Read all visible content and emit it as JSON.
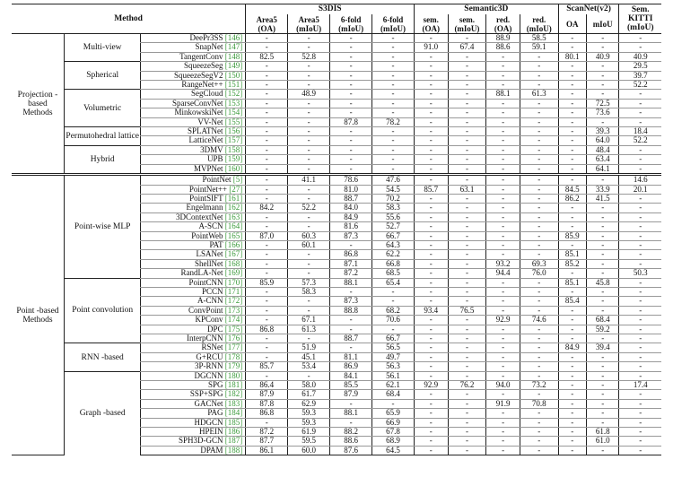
{
  "header": {
    "method": "Method",
    "groups": [
      "S3DIS",
      "Semantic3D",
      "ScanNet(v2)",
      "Sem. KITTI"
    ],
    "columns": [
      [
        "Area5",
        "(OA)"
      ],
      [
        "Area5",
        "(mIoU)"
      ],
      [
        "6-fold",
        "(mIoU)"
      ],
      [
        "6-fold",
        "(mIoU)"
      ],
      [
        "sem.",
        "(OA)"
      ],
      [
        "sem.",
        "(mIoU)"
      ],
      [
        "red.",
        "(OA)"
      ],
      [
        "red.",
        "(mIoU)"
      ],
      [
        "OA",
        ""
      ],
      [
        "mIoU",
        ""
      ],
      [
        "(mIoU)",
        ""
      ]
    ]
  },
  "categories": [
    {
      "label": "Projection -based Methods",
      "groups": [
        {
          "label": "Multi-view",
          "rows": [
            {
              "name": "DeePr3SS",
              "ref": "[146]",
              "vals": [
                "-",
                "-",
                "-",
                "-",
                "-",
                "-",
                "88.9",
                "58.5",
                "-",
                "-",
                "-"
              ]
            },
            {
              "name": "SnapNet",
              "ref": "[147]",
              "vals": [
                "-",
                "-",
                "-",
                "-",
                "91.0",
                "67.4",
                "88.6",
                "59.1",
                "-",
                "-",
                "-"
              ]
            },
            {
              "name": "TangentConv",
              "ref": "[148]",
              "vals": [
                "82.5",
                "52.8",
                "-",
                "-",
                "-",
                "-",
                "-",
                "-",
                "80.1",
                "40.9",
                "40.9"
              ]
            }
          ]
        },
        {
          "label": "Spherical",
          "rows": [
            {
              "name": "SqueezeSeg",
              "ref": "[149]",
              "vals": [
                "-",
                "-",
                "-",
                "-",
                "-",
                "-",
                "-",
                "-",
                "-",
                "-",
                "29.5"
              ]
            },
            {
              "name": "SqueezeSegV2",
              "ref": "[150]",
              "vals": [
                "-",
                "-",
                "-",
                "-",
                "-",
                "-",
                "-",
                "-",
                "-",
                "-",
                "39.7"
              ]
            },
            {
              "name": "RangeNet++",
              "ref": "[151]",
              "vals": [
                "-",
                "-",
                "-",
                "-",
                "-",
                "-",
                "-",
                "-",
                "-",
                "-",
                "52.2"
              ]
            }
          ]
        },
        {
          "label": "Volumetric",
          "rows": [
            {
              "name": "SegCloud",
              "ref": "[152]",
              "vals": [
                "-",
                "48.9",
                "-",
                "-",
                "-",
                "-",
                "88.1",
                "61.3",
                "-",
                "-",
                "-"
              ]
            },
            {
              "name": "SparseConvNet",
              "ref": "[153]",
              "vals": [
                "-",
                "-",
                "-",
                "-",
                "-",
                "-",
                "-",
                "-",
                "-",
                "72.5",
                "-"
              ]
            },
            {
              "name": "MinkowskiNet",
              "ref": "[154]",
              "vals": [
                "-",
                "-",
                "-",
                "-",
                "-",
                "-",
                "-",
                "-",
                "-",
                "73.6",
                "-"
              ]
            },
            {
              "name": "VV-Net",
              "ref": "[155]",
              "vals": [
                "-",
                "-",
                "87.8",
                "78.2",
                "-",
                "-",
                "-",
                "-",
                "-",
                "-",
                "-"
              ]
            }
          ]
        },
        {
          "label": "Permutohedral lattice",
          "rows": [
            {
              "name": "SPLATNet",
              "ref": "[156]",
              "vals": [
                "-",
                "-",
                "-",
                "-",
                "-",
                "-",
                "-",
                "-",
                "-",
                "39.3",
                "18.4"
              ]
            },
            {
              "name": "LatticeNet",
              "ref": "[157]",
              "vals": [
                "-",
                "-",
                "-",
                "-",
                "-",
                "-",
                "-",
                "-",
                "-",
                "64.0",
                "52.2"
              ]
            }
          ]
        },
        {
          "label": "Hybrid",
          "rows": [
            {
              "name": "3DMV",
              "ref": "[158]",
              "vals": [
                "-",
                "-",
                "-",
                "-",
                "-",
                "-",
                "-",
                "-",
                "-",
                "48.4",
                "-"
              ]
            },
            {
              "name": "UPB",
              "ref": "[159]",
              "vals": [
                "-",
                "-",
                "-",
                "-",
                "-",
                "-",
                "-",
                "-",
                "-",
                "63.4",
                "-"
              ]
            },
            {
              "name": "MVPNet",
              "ref": "[160]",
              "vals": [
                "-",
                "-",
                "-",
                "-",
                "-",
                "-",
                "-",
                "-",
                "-",
                "64.1",
                "-"
              ]
            }
          ]
        }
      ]
    },
    {
      "label": "Point -based Methods",
      "groups": [
        {
          "label": "Point-wise MLP",
          "rows": [
            {
              "name": "PointNet",
              "ref": "[5]",
              "vals": [
                "-",
                "41.1",
                "78.6",
                "47.6",
                "-",
                "-",
                "-",
                "-",
                "-",
                "-",
                "14.6"
              ]
            },
            {
              "name": "PointNet++",
              "ref": "[27]",
              "vals": [
                "-",
                "-",
                "81.0",
                "54.5",
                "85.7",
                "63.1",
                "-",
                "-",
                "84.5",
                "33.9",
                "20.1"
              ]
            },
            {
              "name": "PointSIFT",
              "ref": "[161]",
              "vals": [
                "-",
                "-",
                "88.7",
                "70.2",
                "-",
                "-",
                "-",
                "-",
                "86.2",
                "41.5",
                "-"
              ]
            },
            {
              "name": "Engelmann",
              "ref": "[162]",
              "vals": [
                "84.2",
                "52.2",
                "84.0",
                "58.3",
                "-",
                "-",
                "-",
                "-",
                "-",
                "-",
                "-"
              ]
            },
            {
              "name": "3DContextNet",
              "ref": "[163]",
              "vals": [
                "-",
                "-",
                "84.9",
                "55.6",
                "-",
                "-",
                "-",
                "-",
                "-",
                "-",
                "-"
              ]
            },
            {
              "name": "A-SCN",
              "ref": "[164]",
              "vals": [
                "-",
                "-",
                "81.6",
                "52.7",
                "-",
                "-",
                "-",
                "-",
                "-",
                "-",
                "-"
              ]
            },
            {
              "name": "PointWeb",
              "ref": "[165]",
              "vals": [
                "87.0",
                "60.3",
                "87.3",
                "66.7",
                "-",
                "-",
                "-",
                "-",
                "85.9",
                "-",
                "-"
              ]
            },
            {
              "name": "PAT",
              "ref": "[166]",
              "vals": [
                "-",
                "60.1",
                "-",
                "64.3",
                "-",
                "-",
                "-",
                "-",
                "-",
                "-",
                "-"
              ]
            },
            {
              "name": "LSANet",
              "ref": "[167]",
              "vals": [
                "-",
                "-",
                "86.8",
                "62.2",
                "-",
                "-",
                "-",
                "-",
                "85.1",
                "-",
                "-"
              ]
            },
            {
              "name": "ShellNet",
              "ref": "[168]",
              "vals": [
                "-",
                "-",
                "87.1",
                "66.8",
                "-",
                "-",
                "93.2",
                "69.3",
                "85.2",
                "-",
                "-"
              ]
            },
            {
              "name": "RandLA-Net",
              "ref": "[169]",
              "vals": [
                "-",
                "-",
                "87.2",
                "68.5",
                "-",
                "-",
                "94.4",
                "76.0",
                "-",
                "-",
                "50.3"
              ]
            }
          ]
        },
        {
          "label": "Point convolution",
          "rows": [
            {
              "name": "PointCNN",
              "ref": "[170]",
              "vals": [
                "85.9",
                "57.3",
                "88.1",
                "65.4",
                "-",
                "-",
                "-",
                "-",
                "85.1",
                "45.8",
                "-"
              ]
            },
            {
              "name": "PCCN",
              "ref": "[171]",
              "vals": [
                "-",
                "58.3",
                "-",
                "-",
                "-",
                "-",
                "-",
                "-",
                "-",
                "-",
                "-"
              ]
            },
            {
              "name": "A-CNN",
              "ref": "[172]",
              "vals": [
                "-",
                "-",
                "87.3",
                "-",
                "-",
                "-",
                "-",
                "-",
                "85.4",
                "-",
                "-"
              ]
            },
            {
              "name": "ConvPoint",
              "ref": "[173]",
              "vals": [
                "-",
                "-",
                "88.8",
                "68.2",
                "93.4",
                "76.5",
                "-",
                "-",
                "-",
                "-",
                "-"
              ]
            },
            {
              "name": "KPConv",
              "ref": "[174]",
              "vals": [
                "-",
                "67.1",
                "-",
                "70.6",
                "-",
                "-",
                "92.9",
                "74.6",
                "-",
                "68.4",
                "-"
              ]
            },
            {
              "name": "DPC",
              "ref": "[175]",
              "vals": [
                "86.8",
                "61.3",
                "-",
                "-",
                "-",
                "-",
                "-",
                "-",
                "-",
                "59.2",
                "-"
              ]
            },
            {
              "name": "InterpCNN",
              "ref": "[176]",
              "vals": [
                "-",
                "-",
                "88.7",
                "66.7",
                "-",
                "-",
                "-",
                "-",
                "-",
                "-",
                "-"
              ]
            }
          ]
        },
        {
          "label": "RNN -based",
          "rows": [
            {
              "name": "RSNet",
              "ref": "[177]",
              "vals": [
                "-",
                "51.9",
                "-",
                "56.5",
                "-",
                "-",
                "-",
                "-",
                "84.9",
                "39.4",
                "-"
              ]
            },
            {
              "name": "G+RCU",
              "ref": "[178]",
              "vals": [
                "-",
                "45.1",
                "81.1",
                "49.7",
                "-",
                "-",
                "-",
                "-",
                "-",
                "-",
                "-"
              ]
            },
            {
              "name": "3P-RNN",
              "ref": "[179]",
              "vals": [
                "85.7",
                "53.4",
                "86.9",
                "56.3",
                "-",
                "-",
                "-",
                "-",
                "-",
                "-",
                "-"
              ]
            }
          ]
        },
        {
          "label": "Graph -based",
          "rows": [
            {
              "name": "DGCNN",
              "ref": "[180]",
              "vals": [
                "-",
                "-",
                "84.1",
                "56.1",
                "-",
                "-",
                "-",
                "-",
                "-",
                "-",
                "-"
              ]
            },
            {
              "name": "SPG",
              "ref": "[181]",
              "vals": [
                "86.4",
                "58.0",
                "85.5",
                "62.1",
                "92.9",
                "76.2",
                "94.0",
                "73.2",
                "-",
                "-",
                "17.4"
              ]
            },
            {
              "name": "SSP+SPG",
              "ref": "[182]",
              "vals": [
                "87.9",
                "61.7",
                "87.9",
                "68.4",
                "-",
                "-",
                "-",
                "-",
                "-",
                "-",
                "-"
              ]
            },
            {
              "name": "GACNet",
              "ref": "[183]",
              "vals": [
                "87.8",
                "62.9",
                "-",
                "-",
                "-",
                "-",
                "91.9",
                "70.8",
                "-",
                "-",
                "-"
              ]
            },
            {
              "name": "PAG",
              "ref": "[184]",
              "vals": [
                "86.8",
                "59.3",
                "88.1",
                "65.9",
                "-",
                "-",
                "-",
                "-",
                "-",
                "-",
                "-"
              ]
            },
            {
              "name": "HDGCN",
              "ref": "[185]",
              "vals": [
                "-",
                "59.3",
                "-",
                "66.9",
                "-",
                "-",
                "-",
                "-",
                "-",
                "-",
                "-"
              ]
            },
            {
              "name": "HPEIN",
              "ref": "[186]",
              "vals": [
                "87.2",
                "61.9",
                "88.2",
                "67.8",
                "-",
                "-",
                "-",
                "-",
                "-",
                "61.8",
                "-"
              ]
            },
            {
              "name": "SPH3D-GCN",
              "ref": "[187]",
              "vals": [
                "87.7",
                "59.5",
                "88.6",
                "68.9",
                "-",
                "-",
                "-",
                "-",
                "-",
                "61.0",
                "-"
              ]
            },
            {
              "name": "DPAM",
              "ref": "[188]",
              "vals": [
                "86.1",
                "60.0",
                "87.6",
                "64.5",
                "-",
                "-",
                "-",
                "-",
                "-",
                "-",
                "-"
              ]
            }
          ]
        }
      ]
    }
  ]
}
